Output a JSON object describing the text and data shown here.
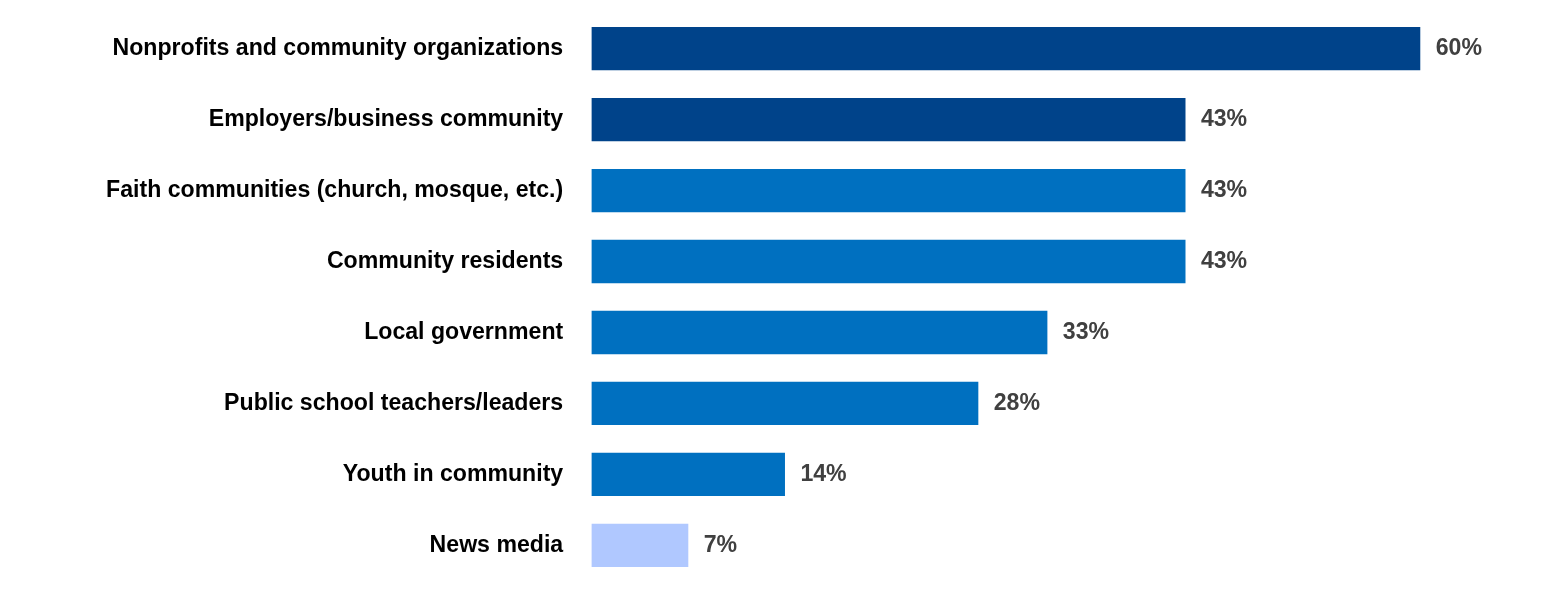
{
  "chart_data": {
    "type": "bar",
    "orientation": "horizontal",
    "categories": [
      "Nonprofits and community organizations",
      "Employers/business community",
      "Faith communities (church, mosque, etc.)",
      "Community residents",
      "Local government",
      "Public school teachers/leaders",
      "Youth in community",
      "News media"
    ],
    "values": [
      60,
      43,
      43,
      43,
      33,
      28,
      14,
      7
    ],
    "colors": [
      "#00438a",
      "#00438a",
      "#0070c0",
      "#0070c0",
      "#0070c0",
      "#0070c0",
      "#0070c0",
      "#b0c8ff"
    ],
    "value_labels": [
      "60%",
      "43%",
      "43%",
      "43%",
      "33%",
      "28%",
      "14%",
      "7%"
    ],
    "tick_labels": "y",
    "grid": false
  }
}
